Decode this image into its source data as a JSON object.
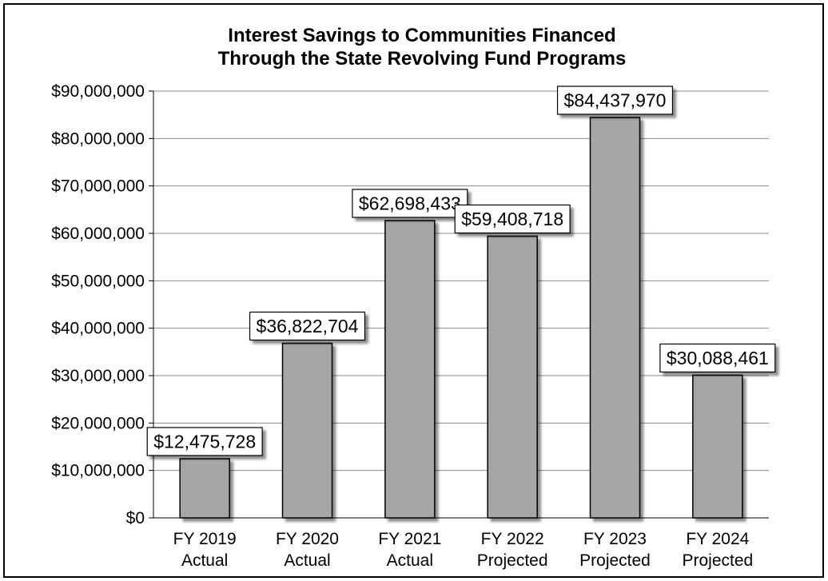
{
  "chart_data": {
    "type": "bar",
    "title": "Interest Savings to Communities Financed",
    "subtitle": "Through the State Revolving Fund Programs",
    "categories": [
      [
        "FY 2019",
        "Actual"
      ],
      [
        "FY 2020",
        "Actual"
      ],
      [
        "FY 2021",
        "Actual"
      ],
      [
        "FY 2022",
        "Projected"
      ],
      [
        "FY 2023",
        "Projected"
      ],
      [
        "FY 2024",
        "Projected"
      ]
    ],
    "values": [
      12475728,
      36822704,
      62698433,
      59408718,
      84437970,
      30088461
    ],
    "data_labels": [
      "$12,475,728",
      "$36,822,704",
      "$62,698,433",
      "$59,408,718",
      "$84,437,970",
      "$30,088,461"
    ],
    "ylim": [
      0,
      90000000
    ],
    "yticks": [
      0,
      10000000,
      20000000,
      30000000,
      40000000,
      50000000,
      60000000,
      70000000,
      80000000,
      90000000
    ],
    "ytick_labels": [
      "$0",
      "$10,000,000",
      "$20,000,000",
      "$30,000,000",
      "$40,000,000",
      "$50,000,000",
      "$60,000,000",
      "$70,000,000",
      "$80,000,000",
      "$90,000,000"
    ],
    "xlabel": "",
    "ylabel": "",
    "grid": true,
    "bar_color": "#a6a6a6",
    "legend": "none"
  }
}
